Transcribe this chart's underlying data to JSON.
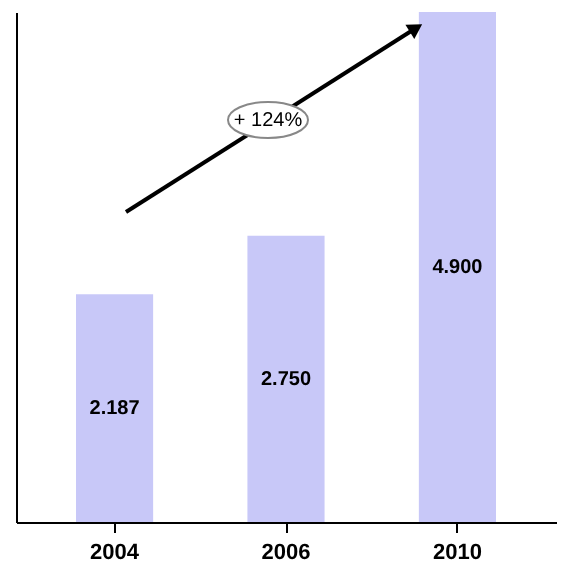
{
  "chart_data": {
    "type": "bar",
    "categories": [
      "2004",
      "2006",
      "2010"
    ],
    "values": [
      2.187,
      2.75,
      4.9
    ],
    "value_labels": [
      "2.187",
      "2.750",
      "4.900"
    ],
    "color": "#c8c8f8",
    "relative": false,
    "annotations": [
      "+ 124%"
    ]
  }
}
